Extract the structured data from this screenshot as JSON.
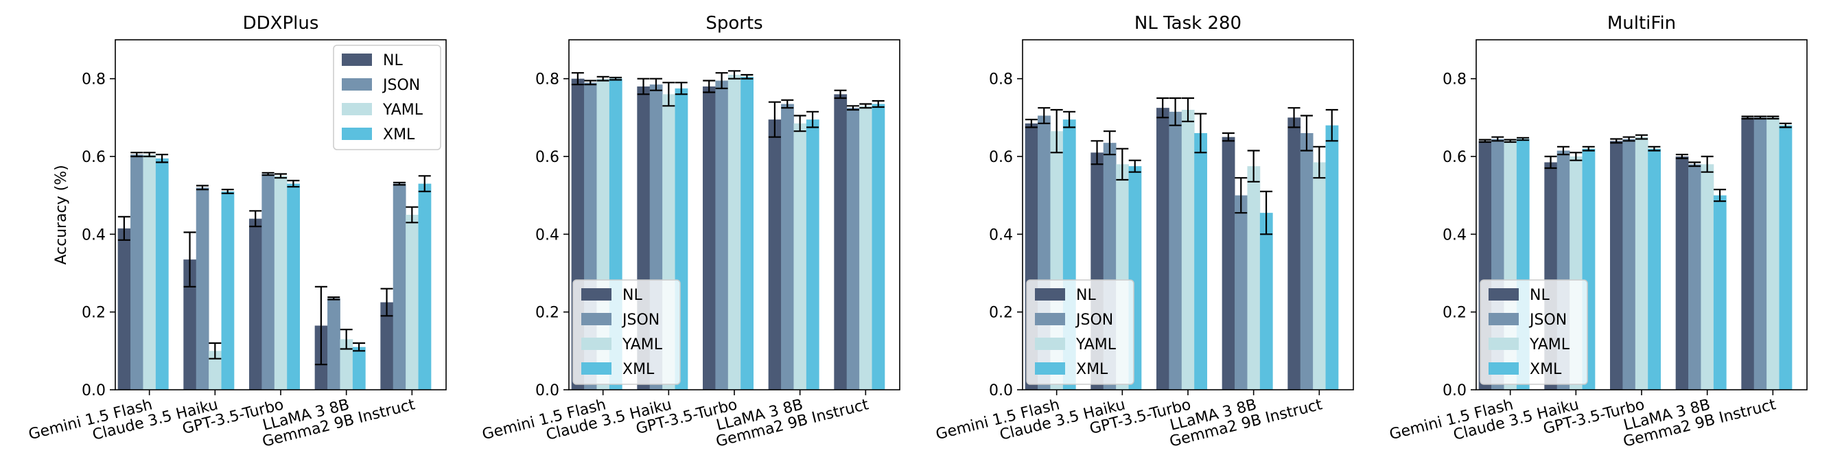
{
  "colors": {
    "NL": "#4b5a76",
    "JSON": "#7593ae",
    "YAML": "#bfe0e4",
    "XML": "#5bc0df"
  },
  "chart_data": [
    {
      "type": "bar",
      "title": "DDXPlus",
      "ylabel": "Accuracy (%)",
      "xlabel": "",
      "ylim": [
        0,
        0.9
      ],
      "yticks": [
        "0.0",
        "0.2",
        "0.4",
        "0.6",
        "0.8"
      ],
      "categories": [
        "Gemini 1.5 Flash",
        "Claude 3.5 Haiku",
        "GPT-3.5-Turbo",
        "LLaMA 3 8B",
        "Gemma2 9B Instruct"
      ],
      "legend": "top-right",
      "series": [
        {
          "name": "NL",
          "values": [
            0.415,
            0.335,
            0.44,
            0.165,
            0.225
          ],
          "errors": [
            0.03,
            0.07,
            0.02,
            0.1,
            0.035
          ]
        },
        {
          "name": "JSON",
          "values": [
            0.605,
            0.52,
            0.555,
            0.235,
            0.53
          ],
          "errors": [
            0.005,
            0.005,
            0.003,
            0.003,
            0.003
          ]
        },
        {
          "name": "YAML",
          "values": [
            0.605,
            0.1,
            0.55,
            0.13,
            0.45
          ],
          "errors": [
            0.005,
            0.02,
            0.005,
            0.025,
            0.02
          ]
        },
        {
          "name": "XML",
          "values": [
            0.595,
            0.51,
            0.53,
            0.11,
            0.53
          ],
          "errors": [
            0.01,
            0.005,
            0.008,
            0.01,
            0.02
          ]
        }
      ]
    },
    {
      "type": "bar",
      "title": "Sports",
      "ylabel": "",
      "xlabel": "",
      "ylim": [
        0,
        0.9
      ],
      "yticks": [
        "0.0",
        "0.2",
        "0.4",
        "0.6",
        "0.8"
      ],
      "categories": [
        "Gemini 1.5 Flash",
        "Claude 3.5 Haiku",
        "GPT-3.5-Turbo",
        "LLaMA 3 8B",
        "Gemma2 9B Instruct"
      ],
      "legend": "lower-left",
      "series": [
        {
          "name": "NL",
          "values": [
            0.8,
            0.78,
            0.78,
            0.695,
            0.76
          ],
          "errors": [
            0.015,
            0.02,
            0.015,
            0.045,
            0.01
          ]
        },
        {
          "name": "JSON",
          "values": [
            0.79,
            0.785,
            0.795,
            0.735,
            0.725
          ],
          "errors": [
            0.005,
            0.015,
            0.02,
            0.01,
            0.005
          ]
        },
        {
          "name": "YAML",
          "values": [
            0.8,
            0.76,
            0.81,
            0.685,
            0.73
          ],
          "errors": [
            0.005,
            0.03,
            0.01,
            0.02,
            0.005
          ]
        },
        {
          "name": "XML",
          "values": [
            0.8,
            0.775,
            0.805,
            0.695,
            0.735
          ],
          "errors": [
            0.003,
            0.015,
            0.005,
            0.02,
            0.008
          ]
        }
      ]
    },
    {
      "type": "bar",
      "title": "NL Task 280",
      "ylabel": "",
      "xlabel": "",
      "ylim": [
        0,
        0.9
      ],
      "yticks": [
        "0.0",
        "0.2",
        "0.4",
        "0.6",
        "0.8"
      ],
      "categories": [
        "Gemini 1.5 Flash",
        "Claude 3.5 Haiku",
        "GPT-3.5-Turbo",
        "LLaMA 3 8B",
        "Gemma2 9B Instruct"
      ],
      "legend": "lower-left",
      "series": [
        {
          "name": "NL",
          "values": [
            0.685,
            0.61,
            0.725,
            0.65,
            0.7
          ],
          "errors": [
            0.01,
            0.03,
            0.025,
            0.01,
            0.025
          ]
        },
        {
          "name": "JSON",
          "values": [
            0.705,
            0.635,
            0.715,
            0.5,
            0.66
          ],
          "errors": [
            0.02,
            0.03,
            0.035,
            0.045,
            0.045
          ]
        },
        {
          "name": "YAML",
          "values": [
            0.665,
            0.58,
            0.72,
            0.575,
            0.585
          ],
          "errors": [
            0.055,
            0.04,
            0.03,
            0.04,
            0.04
          ]
        },
        {
          "name": "XML",
          "values": [
            0.695,
            0.575,
            0.66,
            0.455,
            0.68
          ],
          "errors": [
            0.02,
            0.015,
            0.05,
            0.055,
            0.04
          ]
        }
      ]
    },
    {
      "type": "bar",
      "title": "MultiFin",
      "ylabel": "",
      "xlabel": "",
      "ylim": [
        0,
        0.9
      ],
      "yticks": [
        "0.0",
        "0.2",
        "0.4",
        "0.6",
        "0.8"
      ],
      "categories": [
        "Gemini 1.5 Flash",
        "Claude 3.5 Haiku",
        "GPT-3.5-Turbo",
        "LLaMA 3 8B",
        "Gemma2 9B Instruct"
      ],
      "legend": "lower-left",
      "series": [
        {
          "name": "NL",
          "values": [
            0.64,
            0.585,
            0.64,
            0.6,
            0.7
          ],
          "errors": [
            0.003,
            0.015,
            0.005,
            0.005,
            0.003
          ]
        },
        {
          "name": "JSON",
          "values": [
            0.645,
            0.615,
            0.645,
            0.58,
            0.7
          ],
          "errors": [
            0.005,
            0.01,
            0.005,
            0.005,
            0.003
          ]
        },
        {
          "name": "YAML",
          "values": [
            0.64,
            0.6,
            0.65,
            0.58,
            0.7
          ],
          "errors": [
            0.003,
            0.01,
            0.005,
            0.02,
            0.003
          ]
        },
        {
          "name": "XML",
          "values": [
            0.645,
            0.62,
            0.62,
            0.5,
            0.68
          ],
          "errors": [
            0.003,
            0.005,
            0.005,
            0.015,
            0.005
          ]
        }
      ]
    }
  ]
}
